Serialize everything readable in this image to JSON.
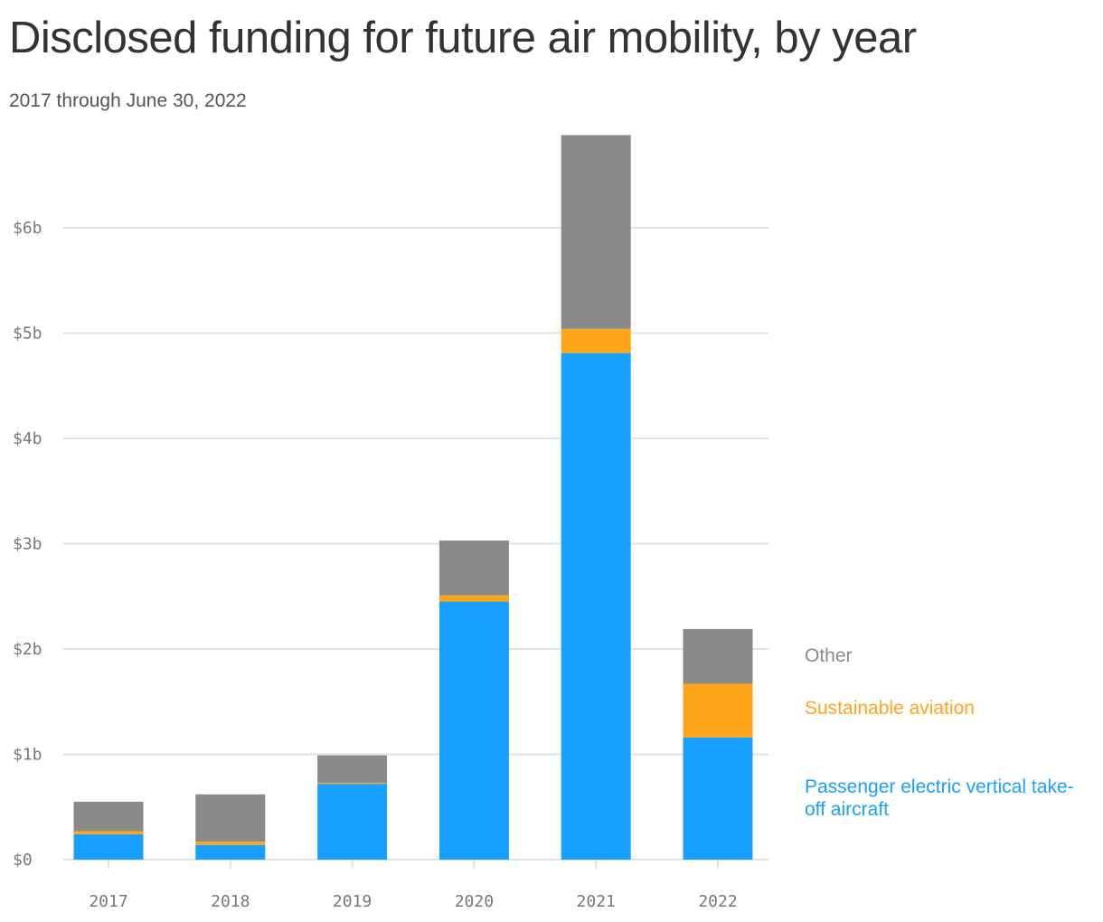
{
  "title": "Disclosed funding for future air mobility, by year",
  "subtitle": "2017 through June 30, 2022",
  "chart_data": {
    "type": "bar",
    "stacked": true,
    "categories": [
      "2017",
      "2018",
      "2019",
      "2020",
      "2021",
      "2022"
    ],
    "series": [
      {
        "name": "Passenger electric vertical take-off aircraft",
        "color": "#18a0ff",
        "values": [
          0.24,
          0.14,
          0.72,
          2.45,
          4.81,
          1.16
        ]
      },
      {
        "name": "Sustainable aviation",
        "color": "#ffa51a",
        "values": [
          0.03,
          0.03,
          0.01,
          0.06,
          0.23,
          0.51
        ]
      },
      {
        "name": "Other",
        "color": "#8a8a8a",
        "values": [
          0.28,
          0.45,
          0.26,
          0.52,
          1.84,
          0.52
        ]
      }
    ],
    "yticks": [
      "$0",
      "$1b",
      "$2b",
      "$3b",
      "$4b",
      "$5b",
      "$6b"
    ],
    "ylim": [
      0,
      7
    ],
    "unit": "billion USD",
    "grid": true,
    "legend": "right"
  }
}
